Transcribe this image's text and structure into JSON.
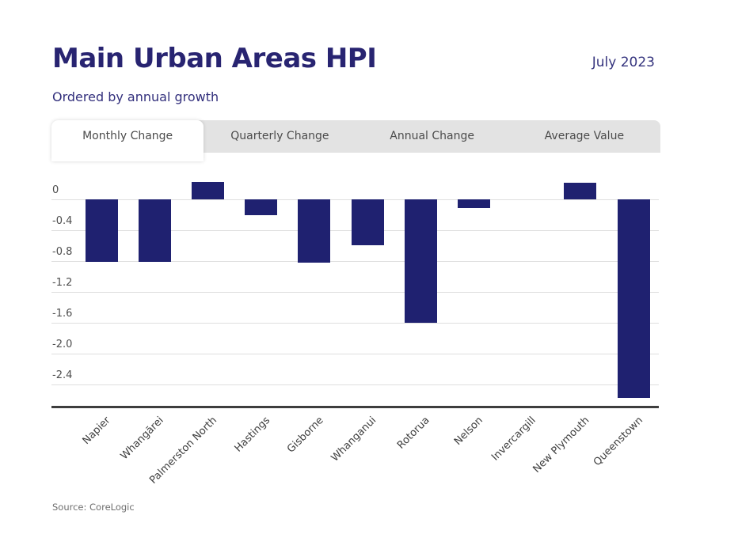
{
  "header": {
    "title": "Main Urban Areas HPI",
    "date": "July 2023",
    "subtitle": "Ordered by annual growth"
  },
  "tabs": [
    {
      "label": "Monthly Change",
      "active": true
    },
    {
      "label": "Quarterly Change",
      "active": false
    },
    {
      "label": "Annual Change",
      "active": false
    },
    {
      "label": "Average Value",
      "active": false
    }
  ],
  "chart_data": {
    "type": "bar",
    "title": "Main Urban Areas HPI",
    "subtitle": "Ordered by annual growth",
    "categories": [
      "Napier",
      "Whangārei",
      "Palmerston North",
      "Hastings",
      "Gisborne",
      "Whanganui",
      "Rotorua",
      "Nelson",
      "Invercargill",
      "New Plymouth",
      "Queenstown"
    ],
    "values": [
      -0.81,
      -0.81,
      0.23,
      -0.2,
      -0.82,
      -0.6,
      -1.6,
      -0.11,
      0,
      0.22,
      -2.58
    ],
    "yticks": [
      0,
      -0.4,
      -0.8,
      -1.2,
      -1.6,
      -2.0,
      -2.4
    ],
    "ytick_labels": [
      "0",
      "-0.4",
      "-0.8",
      "-1.2",
      "-1.6",
      "-2.0",
      "-2.4"
    ],
    "ylim": [
      -2.68,
      0.33
    ],
    "grid": true,
    "legend": false,
    "xlabel": "",
    "ylabel": "",
    "bar_color": "#1f2170"
  },
  "colors": {
    "accent_navy": "#282471",
    "bar": "#1f2170",
    "tab_bg": "#e3e3e3",
    "tab_text": "#4b4b4b",
    "gridline": "#dfdfdf",
    "axis": "#3e3e3e"
  },
  "footer": {
    "source": "Source: CoreLogic"
  }
}
